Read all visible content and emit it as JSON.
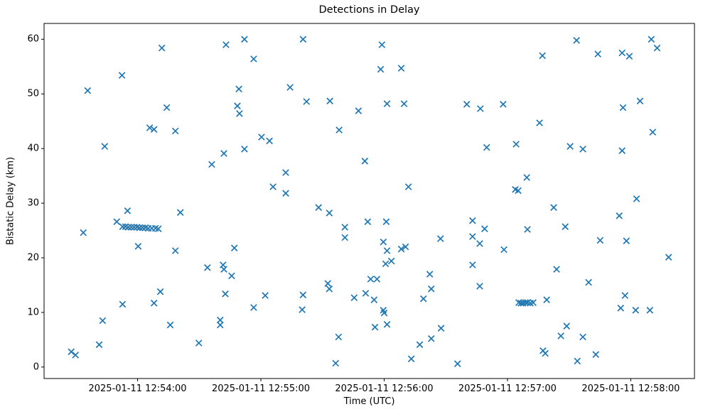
{
  "chart_data": {
    "type": "scatter",
    "title": "Detections in Delay",
    "xlabel": "Time (UTC)",
    "ylabel": "Bistatic Delay (km)",
    "marker": "x",
    "marker_color": "#1f77b4",
    "axes_color": "#000000",
    "background_color": "#ffffff",
    "grid": false,
    "legend": null,
    "x_axis": {
      "unit": "seconds after 2025-01-11 12:53:00 UTC",
      "range": [
        14.5,
        331
      ],
      "ticks": [
        {
          "value": 60,
          "label": "2025-01-11 12:54:00"
        },
        {
          "value": 120,
          "label": "2025-01-11 12:55:00"
        },
        {
          "value": 180,
          "label": "2025-01-11 12:56:00"
        },
        {
          "value": 240,
          "label": "2025-01-11 12:57:00"
        },
        {
          "value": 300,
          "label": "2025-01-11 12:58:00"
        }
      ]
    },
    "y_axis": {
      "unit": "km",
      "range": [
        -2.1,
        62.9
      ],
      "ticks": [
        0,
        10,
        20,
        30,
        40,
        50,
        60
      ]
    },
    "points": [
      [
        71.8,
        58.4
      ],
      [
        103.0,
        59.0
      ],
      [
        112.0,
        60.0
      ],
      [
        116.5,
        56.4
      ],
      [
        140.5,
        60.0
      ],
      [
        52.4,
        53.4
      ],
      [
        35.7,
        50.6
      ],
      [
        109.3,
        50.9
      ],
      [
        134.2,
        51.2
      ],
      [
        74.2,
        47.5
      ],
      [
        108.6,
        47.8
      ],
      [
        109.6,
        46.4
      ],
      [
        142.2,
        48.6
      ],
      [
        153.6,
        48.7
      ],
      [
        167.5,
        46.9
      ],
      [
        178.9,
        59.0
      ],
      [
        178.3,
        54.5
      ],
      [
        188.3,
        54.7
      ],
      [
        257.0,
        57.0
      ],
      [
        273.6,
        59.8
      ],
      [
        284.0,
        57.3
      ],
      [
        295.8,
        57.5
      ],
      [
        299.3,
        56.9
      ],
      [
        310.0,
        60.0
      ],
      [
        312.8,
        58.4
      ],
      [
        181.4,
        48.2
      ],
      [
        189.7,
        48.2
      ],
      [
        220.2,
        48.1
      ],
      [
        226.8,
        47.3
      ],
      [
        237.9,
        48.1
      ],
      [
        296.2,
        47.5
      ],
      [
        304.5,
        48.7
      ],
      [
        65.9,
        43.8
      ],
      [
        68.0,
        43.5
      ],
      [
        78.4,
        43.2
      ],
      [
        44.0,
        40.4
      ],
      [
        102.0,
        39.1
      ],
      [
        112.0,
        39.9
      ],
      [
        96.1,
        37.1
      ],
      [
        120.3,
        42.1
      ],
      [
        124.2,
        41.4
      ],
      [
        132.1,
        35.6
      ],
      [
        125.9,
        33.0
      ],
      [
        132.1,
        31.8
      ],
      [
        158.1,
        43.4
      ],
      [
        170.6,
        37.7
      ],
      [
        255.6,
        44.7
      ],
      [
        310.7,
        43.0
      ],
      [
        229.9,
        40.2
      ],
      [
        244.2,
        40.8
      ],
      [
        270.5,
        40.4
      ],
      [
        276.7,
        39.9
      ],
      [
        295.8,
        39.6
      ],
      [
        191.8,
        33.0
      ],
      [
        249.4,
        34.7
      ],
      [
        243.8,
        32.5
      ],
      [
        245.2,
        32.3
      ],
      [
        302.8,
        30.8
      ],
      [
        55.1,
        28.6
      ],
      [
        80.8,
        28.3
      ],
      [
        49.9,
        26.6
      ],
      [
        52.7,
        25.7
      ],
      [
        54.1,
        25.7
      ],
      [
        55.5,
        25.6
      ],
      [
        56.9,
        25.6
      ],
      [
        58.3,
        25.6
      ],
      [
        59.7,
        25.6
      ],
      [
        61.0,
        25.5
      ],
      [
        62.4,
        25.5
      ],
      [
        63.8,
        25.5
      ],
      [
        65.2,
        25.4
      ],
      [
        66.9,
        25.4
      ],
      [
        68.7,
        25.4
      ],
      [
        70.1,
        25.3
      ],
      [
        33.6,
        24.6
      ],
      [
        60.3,
        22.1
      ],
      [
        78.4,
        21.3
      ],
      [
        107.1,
        21.8
      ],
      [
        94.0,
        18.2
      ],
      [
        101.6,
        18.7
      ],
      [
        102.0,
        17.9
      ],
      [
        105.8,
        16.7
      ],
      [
        71.1,
        13.8
      ],
      [
        148.1,
        29.2
      ],
      [
        153.3,
        28.2
      ],
      [
        160.9,
        25.6
      ],
      [
        160.9,
        23.7
      ],
      [
        172.0,
        26.6
      ],
      [
        262.5,
        29.2
      ],
      [
        181.0,
        26.6
      ],
      [
        223.0,
        26.8
      ],
      [
        228.9,
        25.3
      ],
      [
        223.0,
        23.9
      ],
      [
        226.5,
        22.6
      ],
      [
        249.7,
        25.2
      ],
      [
        268.1,
        25.7
      ],
      [
        294.4,
        27.7
      ],
      [
        285.1,
        23.2
      ],
      [
        297.9,
        23.1
      ],
      [
        207.4,
        23.5
      ],
      [
        179.6,
        22.9
      ],
      [
        181.4,
        21.3
      ],
      [
        188.3,
        21.6
      ],
      [
        190.4,
        22.0
      ],
      [
        238.3,
        21.5
      ],
      [
        180.7,
        18.9
      ],
      [
        183.5,
        19.4
      ],
      [
        202.2,
        17.0
      ],
      [
        223.0,
        18.7
      ],
      [
        263.9,
        17.9
      ],
      [
        279.5,
        15.5
      ],
      [
        173.4,
        16.1
      ],
      [
        176.5,
        16.1
      ],
      [
        202.9,
        14.3
      ],
      [
        226.5,
        14.8
      ],
      [
        318.4,
        20.1
      ],
      [
        52.7,
        11.5
      ],
      [
        68.0,
        11.7
      ],
      [
        43.0,
        8.5
      ],
      [
        75.9,
        7.7
      ],
      [
        100.2,
        8.6
      ],
      [
        100.2,
        7.7
      ],
      [
        102.7,
        13.4
      ],
      [
        116.5,
        10.9
      ],
      [
        122.1,
        13.1
      ],
      [
        140.1,
        10.5
      ],
      [
        140.5,
        13.2
      ],
      [
        89.8,
        4.4
      ],
      [
        27.7,
        2.8
      ],
      [
        29.8,
        2.2
      ],
      [
        41.3,
        4.1
      ],
      [
        157.8,
        5.5
      ],
      [
        156.4,
        0.7
      ],
      [
        165.4,
        12.7
      ],
      [
        171.0,
        13.5
      ],
      [
        152.6,
        15.3
      ],
      [
        153.3,
        14.3
      ],
      [
        175.1,
        12.3
      ],
      [
        179.6,
        10.4
      ],
      [
        180.0,
        9.9
      ],
      [
        175.5,
        7.3
      ],
      [
        181.4,
        7.8
      ],
      [
        199.1,
        12.5
      ],
      [
        207.7,
        7.1
      ],
      [
        202.9,
        5.2
      ],
      [
        197.3,
        4.1
      ],
      [
        193.2,
        1.5
      ],
      [
        215.7,
        0.6
      ],
      [
        245.5,
        11.8
      ],
      [
        246.6,
        11.7
      ],
      [
        247.6,
        11.7
      ],
      [
        248.7,
        11.8
      ],
      [
        249.7,
        11.8
      ],
      [
        251.1,
        11.7
      ],
      [
        252.5,
        11.8
      ],
      [
        259.1,
        12.3
      ],
      [
        268.8,
        7.5
      ],
      [
        266.0,
        5.7
      ],
      [
        276.7,
        5.5
      ],
      [
        257.3,
        3.0
      ],
      [
        258.4,
        2.5
      ],
      [
        274.0,
        1.1
      ],
      [
        283.0,
        2.3
      ],
      [
        297.2,
        13.1
      ],
      [
        295.1,
        10.8
      ],
      [
        302.4,
        10.4
      ],
      [
        309.3,
        10.4
      ]
    ]
  }
}
